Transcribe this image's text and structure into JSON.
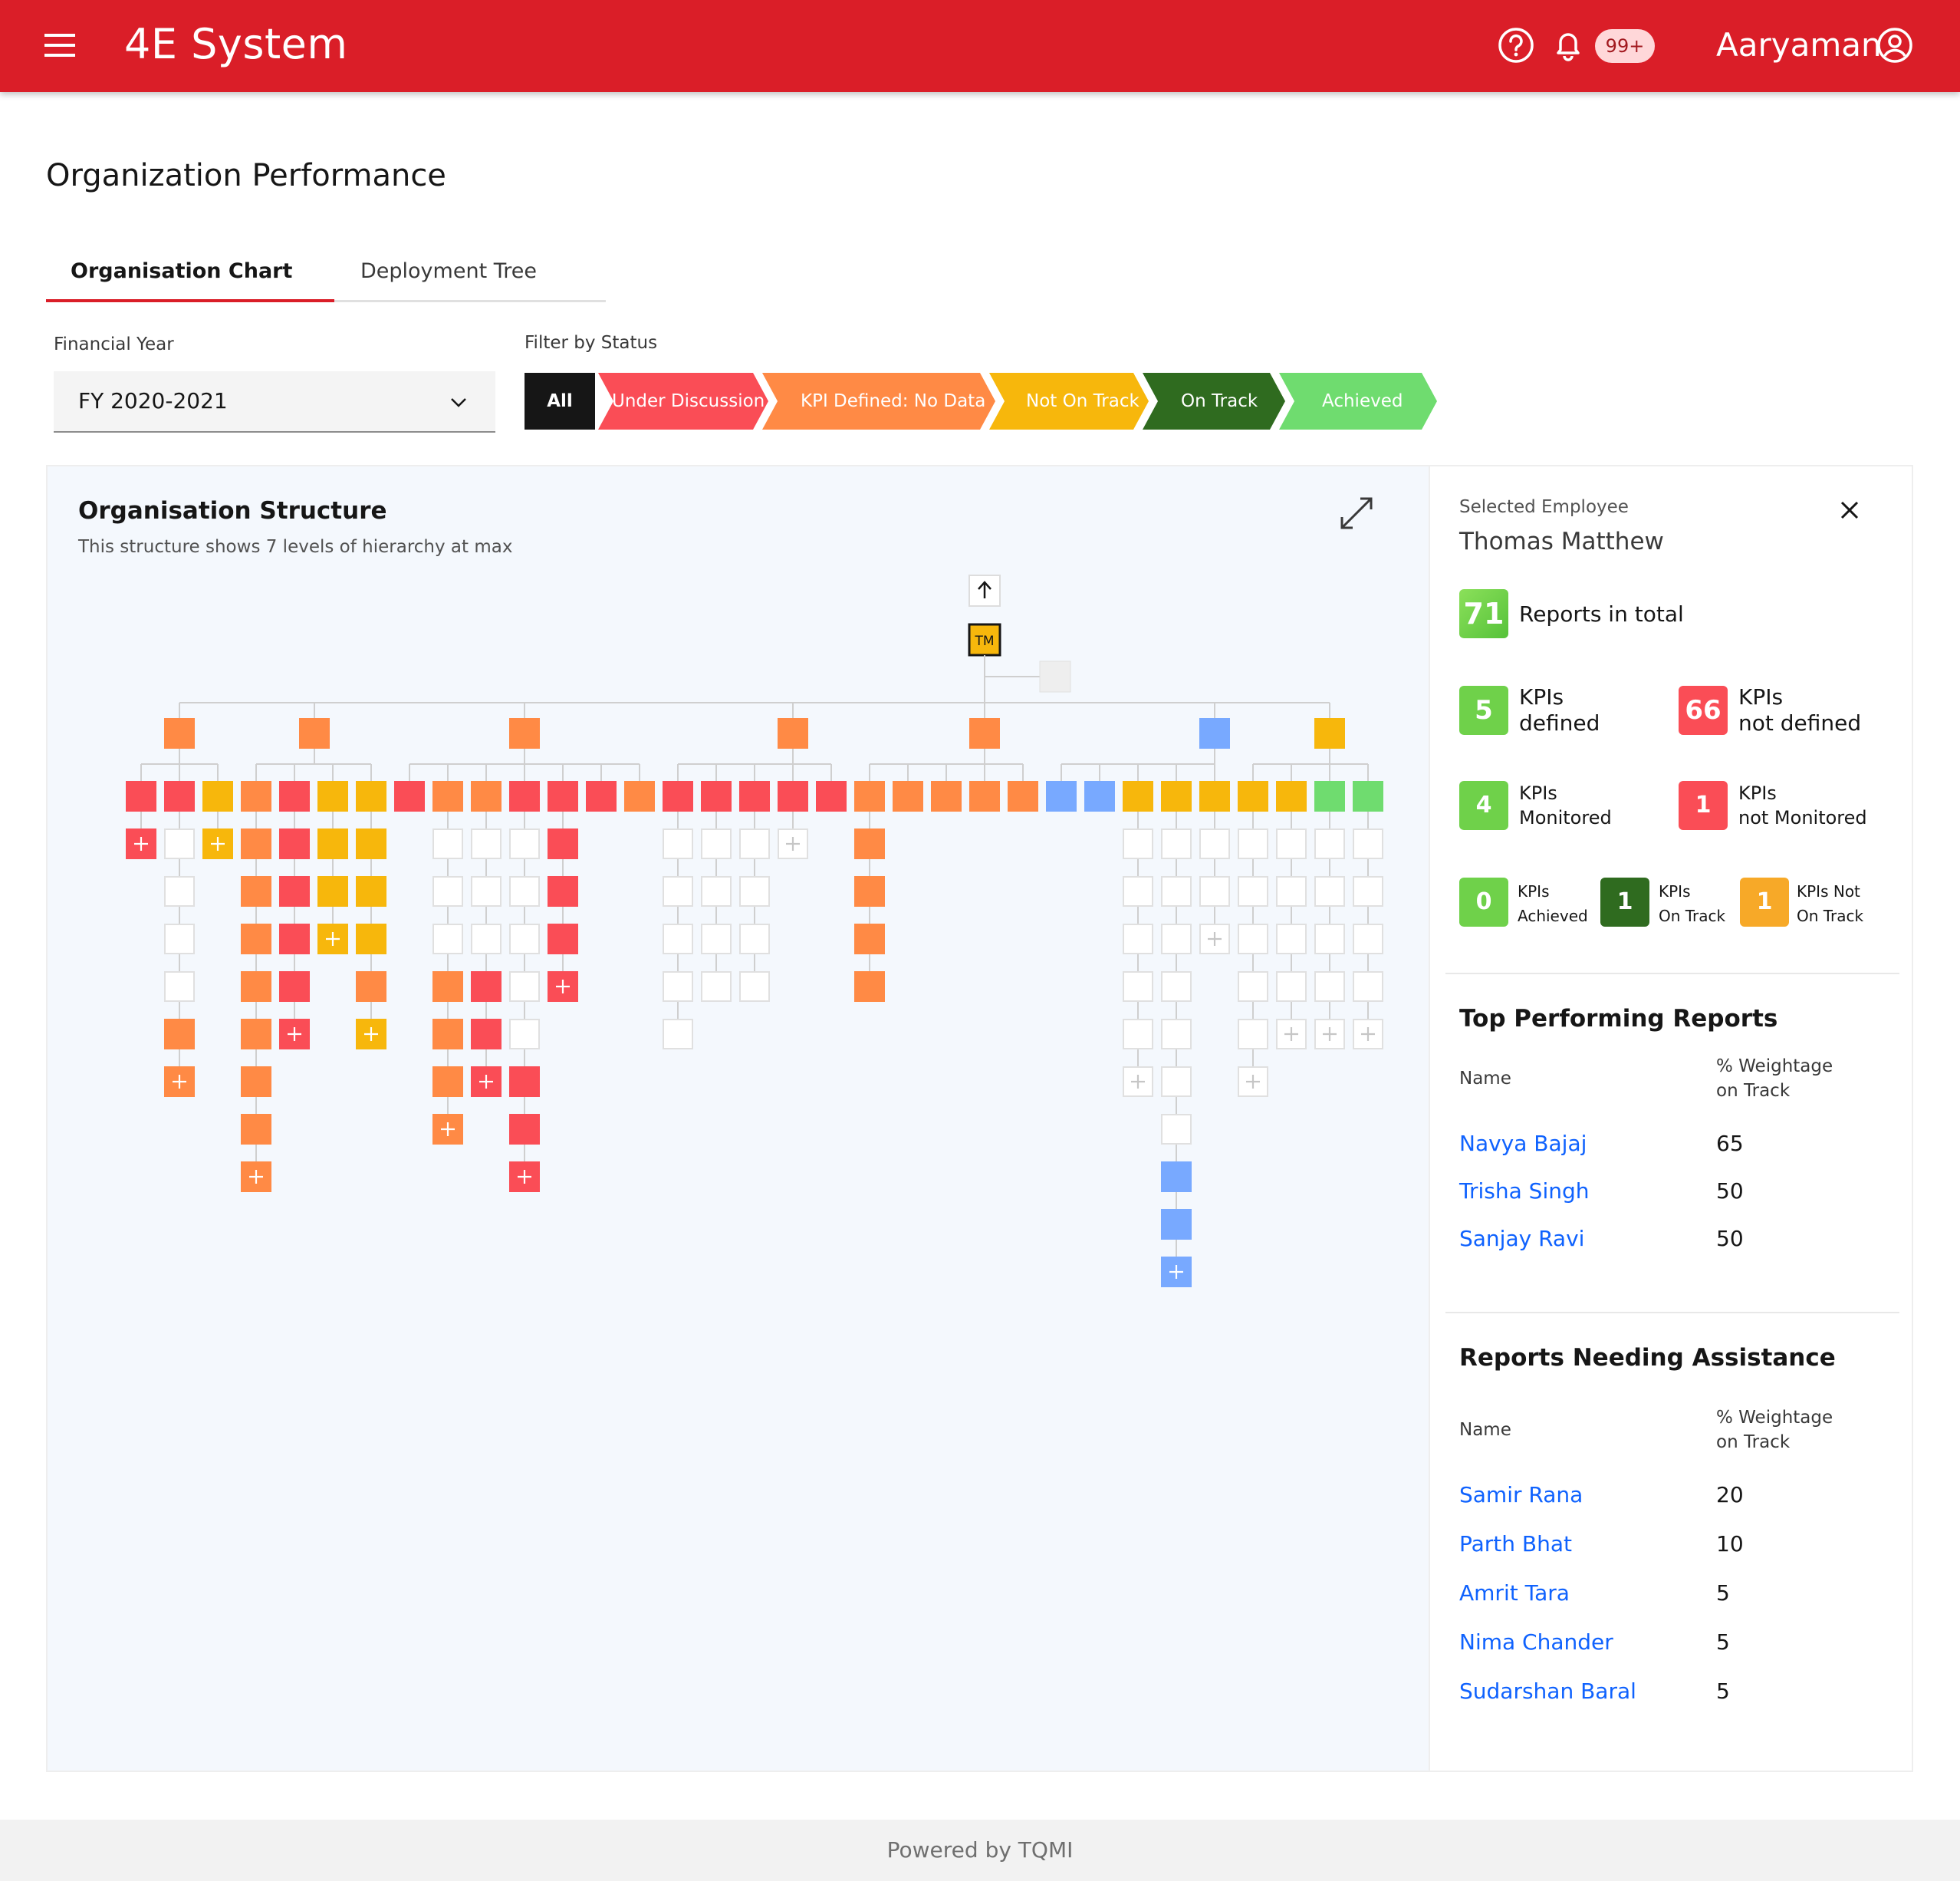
{
  "header": {
    "app_title": "4E System",
    "notification_badge": "99+",
    "user_name": "Aaryaman"
  },
  "page_title": "Organization Performance",
  "tabs": [
    {
      "label": "Organisation Chart",
      "active": true
    },
    {
      "label": "Deployment Tree",
      "active": false
    }
  ],
  "financial_year": {
    "label": "Financial Year",
    "value": "FY 2020-2021"
  },
  "filter": {
    "label": "Filter by Status",
    "options": [
      "All",
      "Under Discussion",
      "KPI Defined: No Data",
      "Not On Track",
      "On Track",
      "Achieved"
    ]
  },
  "status_colors": {
    "under_discussion": "#fa4d56",
    "kpi_defined_no_data": "#ff8a45",
    "not_on_track": "#f7b70c",
    "on_track": "#2f6b1f",
    "achieved": "#6fdc6f",
    "other": "#78a9ff"
  },
  "structure": {
    "title": "Organisation Structure",
    "subtitle": "This structure shows 7 levels of hierarchy at max",
    "root_initials": "TM"
  },
  "selected_employee": {
    "label": "Selected Employee",
    "name": "Thomas Matthew",
    "reports_total": {
      "value": "71",
      "label": "Reports in total"
    },
    "stats": [
      {
        "value": "5",
        "line1": "KPIs",
        "line2": "defined",
        "color": "#6fd14a"
      },
      {
        "value": "66",
        "line1": "KPIs",
        "line2": "not defined",
        "color": "#fa4d56"
      },
      {
        "value": "4",
        "line1": "KPIs",
        "line2": "Monitored",
        "color": "#6fd14a"
      },
      {
        "value": "1",
        "line1": "KPIs",
        "line2": "not Monitored",
        "color": "#fa4d56"
      },
      {
        "value": "0",
        "line1": "KPIs",
        "line2": "Achieved",
        "color": "#6fd14a"
      },
      {
        "value": "1",
        "line1": "KPIs",
        "line2": "On Track",
        "color": "#2f6b1f"
      },
      {
        "value": "1",
        "line1": "KPIs Not",
        "line2": "On Track",
        "color": "#f7a928"
      }
    ]
  },
  "top_performing": {
    "title": "Top Performing Reports",
    "col_name": "Name",
    "col_weight_1": "% Weightage",
    "col_weight_2": "on Track",
    "rows": [
      {
        "name": "Navya Bajaj",
        "value": "65"
      },
      {
        "name": "Trisha Singh",
        "value": "50"
      },
      {
        "name": "Sanjay Ravi",
        "value": "50"
      }
    ]
  },
  "needing_assistance": {
    "title": "Reports Needing Assistance",
    "col_name": "Name",
    "col_weight_1": "% Weightage",
    "col_weight_2": "on Track",
    "rows": [
      {
        "name": "Samir Rana",
        "value": "20"
      },
      {
        "name": "Parth Bhat",
        "value": "10"
      },
      {
        "name": "Amrit Tara",
        "value": "5"
      },
      {
        "name": "Nima Chander",
        "value": "5"
      },
      {
        "name": "Sudarshan Baral",
        "value": "5"
      }
    ]
  },
  "org_tree": {
    "level1": [
      "kpi_defined_no_data",
      "kpi_defined_no_data",
      "kpi_defined_no_data",
      "kpi_defined_no_data",
      "kpi_defined_no_data",
      "other",
      "not_on_track"
    ],
    "level2_groups": [
      [
        "under_discussion",
        "under_discussion",
        "not_on_track"
      ],
      [
        "kpi_defined_no_data",
        "under_discussion",
        "not_on_track",
        "not_on_track"
      ],
      [
        "under_discussion",
        "kpi_defined_no_data",
        "kpi_defined_no_data",
        "under_discussion",
        "under_discussion",
        "under_discussion",
        "kpi_defined_no_data"
      ],
      [
        "under_discussion",
        "under_discussion",
        "under_discussion",
        "under_discussion",
        "under_discussion"
      ],
      [
        "kpi_defined_no_data",
        "kpi_defined_no_data",
        "kpi_defined_no_data",
        "kpi_defined_no_data",
        "kpi_defined_no_data"
      ],
      [
        "other",
        "other",
        "not_on_track",
        "not_on_track",
        "not_on_track"
      ],
      [
        "not_on_track",
        "not_on_track",
        "achieved",
        "achieved"
      ]
    ],
    "columns": [
      [
        "+under_discussion"
      ],
      [
        "empty",
        "empty",
        "empty",
        "empty",
        "kpi_defined_no_data",
        "+kpi_defined_no_data"
      ],
      [
        "+not_on_track"
      ],
      [
        "kpi_defined_no_data",
        "kpi_defined_no_data",
        "kpi_defined_no_data",
        "kpi_defined_no_data",
        "kpi_defined_no_data",
        "kpi_defined_no_data",
        "kpi_defined_no_data",
        "+kpi_defined_no_data"
      ],
      [
        "under_discussion",
        "under_discussion",
        "under_discussion",
        "under_discussion",
        "+under_discussion"
      ],
      [
        "not_on_track",
        "not_on_track",
        "+not_on_track"
      ],
      [
        "not_on_track",
        "not_on_track",
        "not_on_track",
        "kpi_defined_no_data",
        "+not_on_track"
      ],
      [],
      [
        "empty",
        "empty",
        "empty",
        "kpi_defined_no_data",
        "kpi_defined_no_data",
        "kpi_defined_no_data",
        "+kpi_defined_no_data"
      ],
      [
        "empty",
        "empty",
        "empty",
        "under_discussion",
        "under_discussion",
        "+under_discussion"
      ],
      [
        "empty",
        "empty",
        "empty",
        "empty",
        "empty",
        "under_discussion",
        "under_discussion",
        "+under_discussion"
      ],
      [
        "under_discussion",
        "under_discussion",
        "under_discussion",
        "+under_discussion"
      ],
      [],
      [],
      [
        "empty",
        "empty",
        "empty",
        "empty",
        "empty",
        "..."
      ],
      [
        "empty",
        "empty",
        "empty",
        "empty"
      ],
      [
        "empty",
        "empty",
        "empty",
        "empty"
      ],
      [
        "+empty"
      ],
      [],
      [
        "kpi_defined_no_data",
        "kpi_defined_no_data",
        "kpi_defined_no_data",
        "kpi_defined_no_data"
      ],
      [],
      [],
      [],
      [],
      [],
      [],
      [
        "empty",
        "empty",
        "empty",
        "empty",
        "empty",
        "+empty"
      ],
      [
        "empty",
        "empty",
        "empty",
        "empty",
        "empty",
        "empty",
        "empty",
        "other",
        "other",
        "+other"
      ],
      [
        "empty",
        "empty",
        "+empty"
      ],
      [
        "empty",
        "empty",
        "empty",
        "empty",
        "empty",
        "+empty"
      ],
      [
        "empty",
        "empty",
        "empty",
        "empty",
        "+empty"
      ],
      [
        "empty",
        "empty",
        "empty",
        "empty",
        "+empty"
      ],
      [
        "empty",
        "empty",
        "empty",
        "empty",
        "+empty"
      ]
    ]
  },
  "footer": "Powered by TQMI"
}
